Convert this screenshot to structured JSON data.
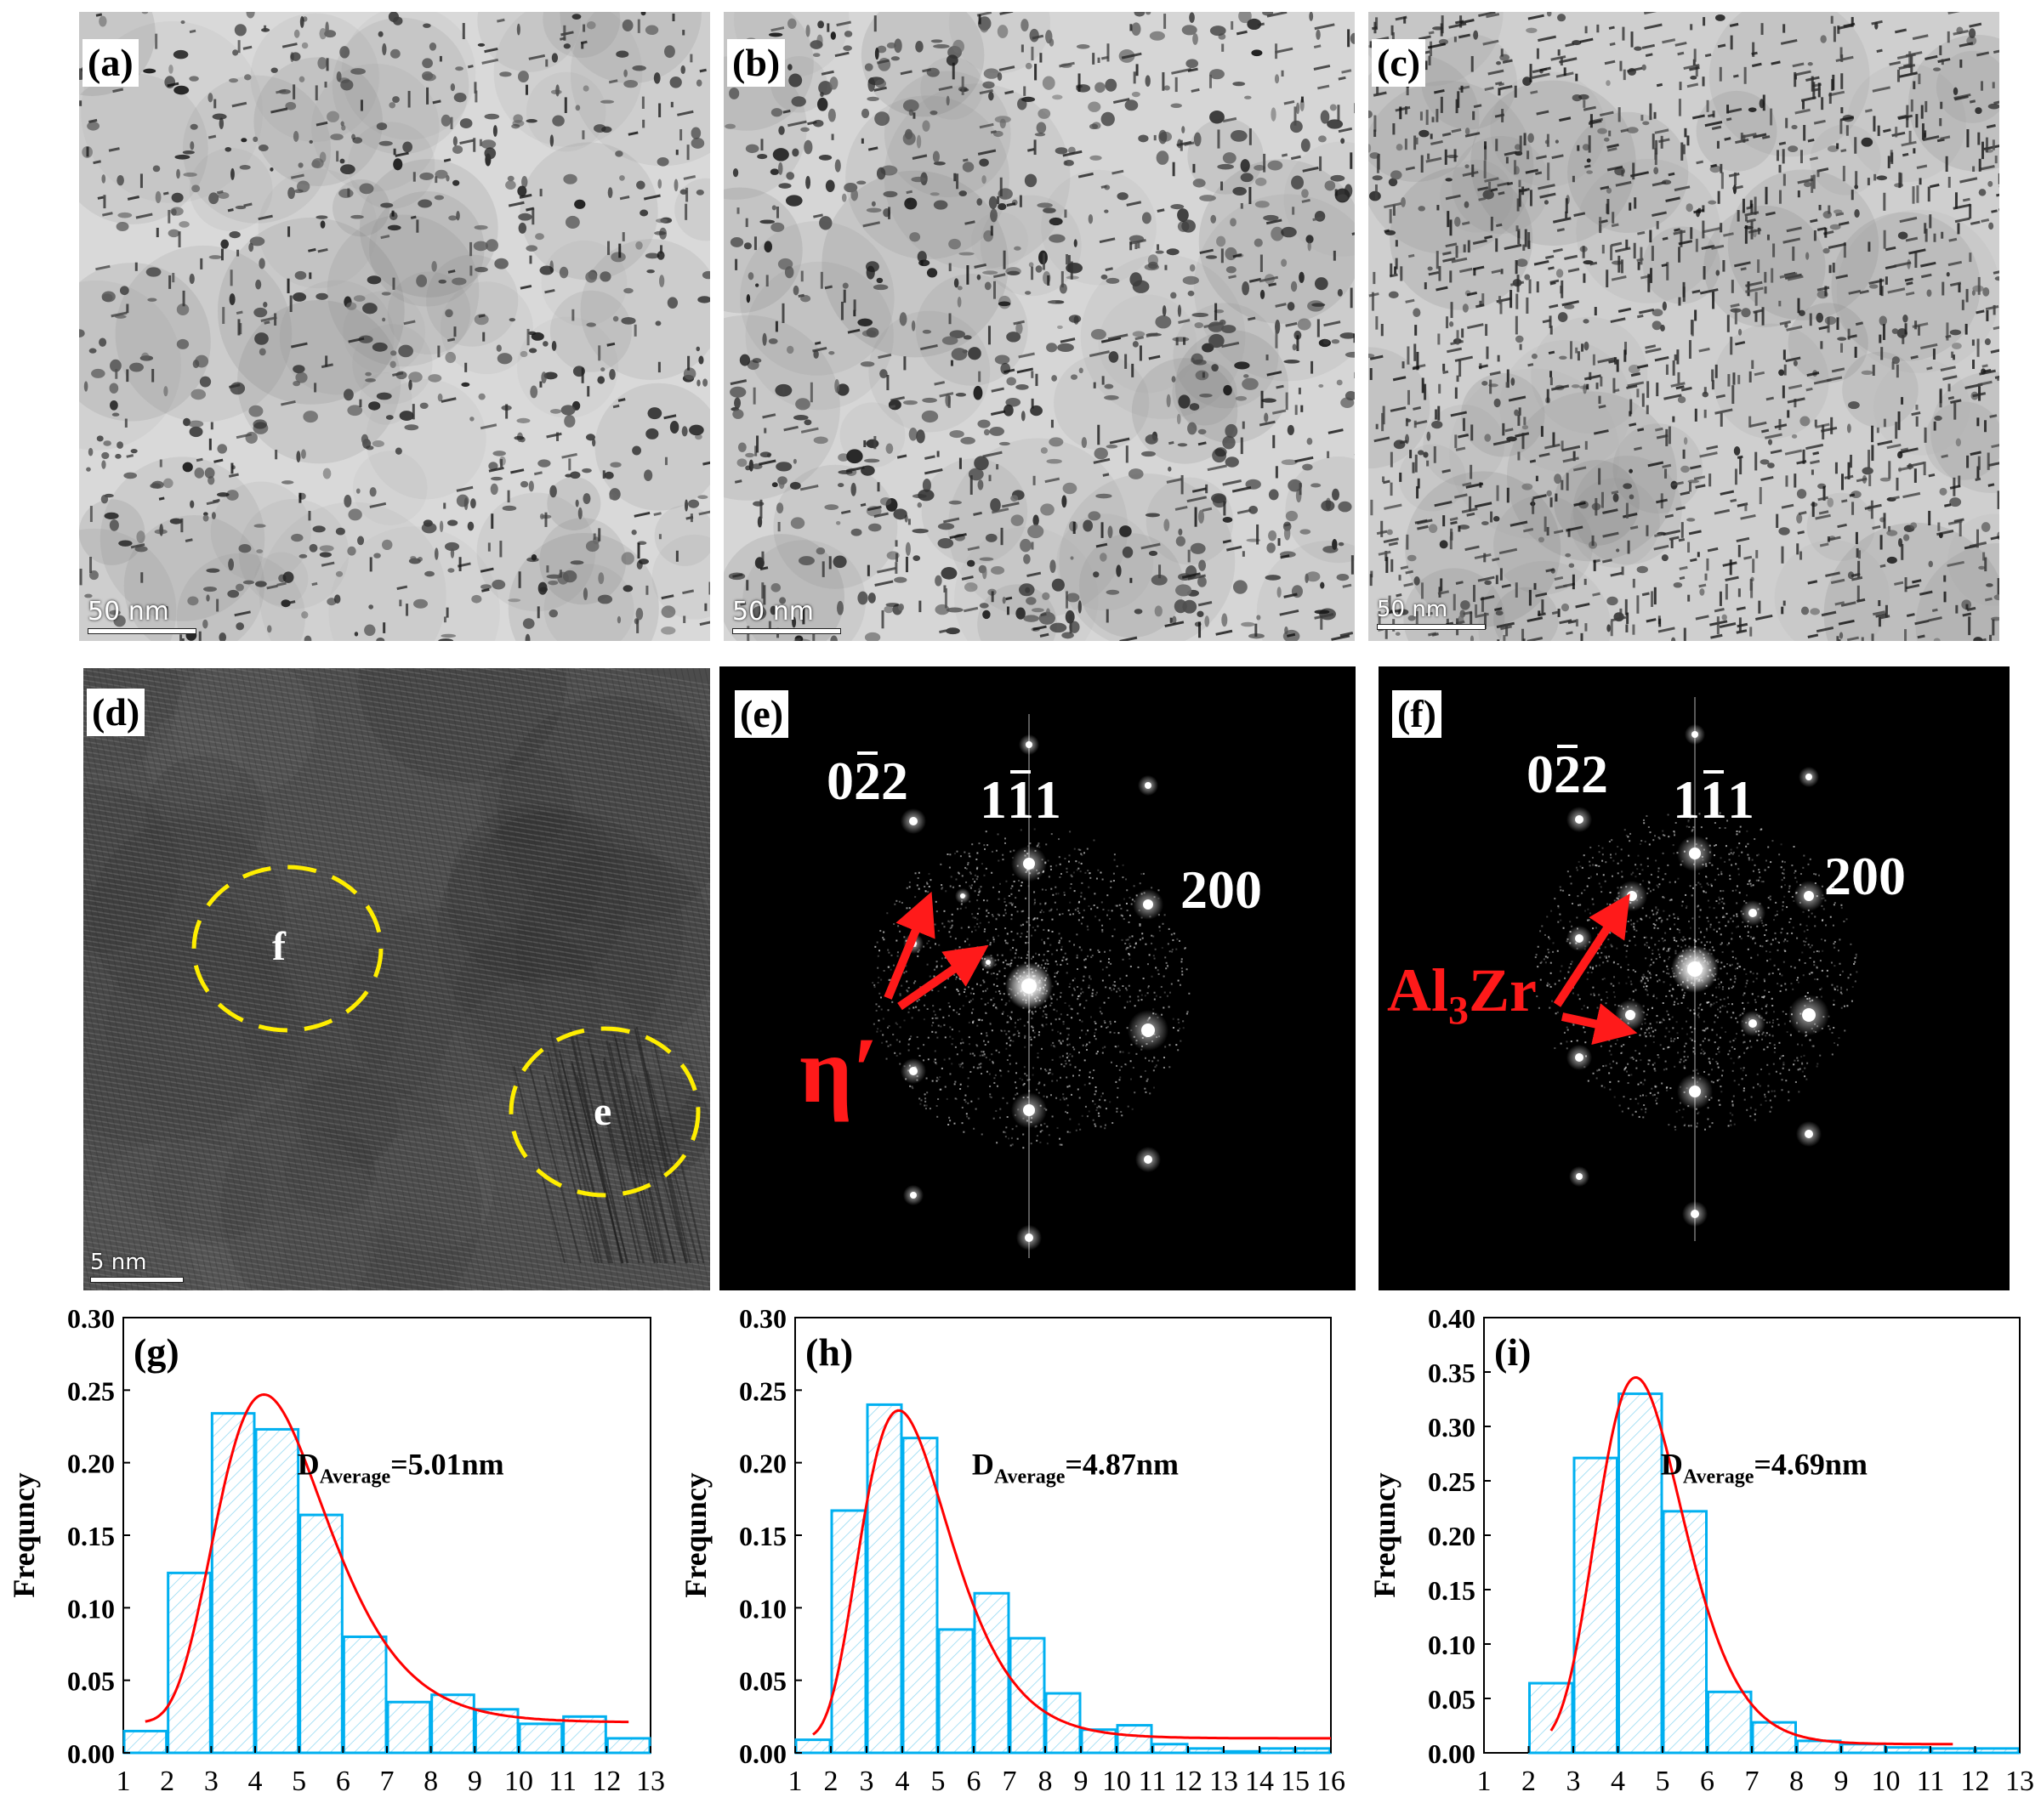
{
  "panels": {
    "a": {
      "label": "(a)",
      "scale": "50 nm"
    },
    "b": {
      "label": "(b)",
      "scale": "50 nm"
    },
    "c": {
      "label": "(c)",
      "scale": "50 nm"
    },
    "d": {
      "label": "(d)",
      "scale": "5 nm",
      "circle_f": "f",
      "circle_e": "e"
    },
    "e": {
      "label": "(e)",
      "idx1": "0",
      "idx1_bar": "2",
      "idx1_end": "2",
      "idx2": "1",
      "idx2_bar": "1",
      "idx2_end": "1",
      "idx3": "200",
      "phase": "η′"
    },
    "f": {
      "label": "(f)",
      "idx1": "0",
      "idx1_bar": "2",
      "idx1_end": "2",
      "idx2": "1",
      "idx2_bar": "1",
      "idx2_end": "1",
      "idx3": "200",
      "phase_a": "Al",
      "phase_sub": "3",
      "phase_b": "Zr"
    }
  },
  "chart_data": [
    {
      "type": "bar",
      "panel_label": "(g)",
      "ylabel": "Frequncy",
      "annotation_main": "D",
      "annotation_sub": "Average",
      "annotation_value": "=5.01nm",
      "xlim": [
        1,
        13
      ],
      "ylim": [
        0,
        0.3
      ],
      "xticks": [
        1,
        2,
        3,
        4,
        5,
        6,
        7,
        8,
        9,
        10,
        11,
        12,
        13
      ],
      "yticks": [
        "0.00",
        "0.05",
        "0.10",
        "0.15",
        "0.20",
        "0.25",
        "0.30"
      ],
      "ytick_values": [
        0,
        0.05,
        0.1,
        0.15,
        0.2,
        0.25,
        0.3
      ],
      "bin_starts": [
        1,
        2,
        3,
        4,
        5,
        6,
        7,
        8,
        9,
        10,
        11,
        12
      ],
      "values": [
        0.015,
        0.124,
        0.234,
        0.223,
        0.164,
        0.08,
        0.035,
        0.04,
        0.03,
        0.02,
        0.025,
        0.01
      ],
      "fit": {
        "type": "lognormal",
        "xmin": 1.5,
        "xmax": 12.5,
        "baseline": 0.021,
        "amplitude": 0.226,
        "peak": 4.2,
        "sigma": 0.3
      },
      "bar_color": "#00b0f0",
      "fit_color": "#ff0000"
    },
    {
      "type": "bar",
      "panel_label": "(h)",
      "ylabel": "Frequncy",
      "annotation_main": "D",
      "annotation_sub": "Average",
      "annotation_value": "=4.87nm",
      "xlim": [
        1,
        16
      ],
      "ylim": [
        0,
        0.3
      ],
      "xticks": [
        1,
        2,
        3,
        4,
        5,
        6,
        7,
        8,
        9,
        10,
        11,
        12,
        13,
        14,
        15,
        16
      ],
      "yticks": [
        "0.00",
        "0.05",
        "0.10",
        "0.15",
        "0.20",
        "0.25",
        "0.30"
      ],
      "ytick_values": [
        0,
        0.05,
        0.1,
        0.15,
        0.2,
        0.25,
        0.3
      ],
      "bin_starts": [
        1,
        2,
        3,
        4,
        5,
        6,
        7,
        8,
        9,
        10,
        11,
        12,
        13,
        14,
        15
      ],
      "values": [
        0.009,
        0.167,
        0.24,
        0.217,
        0.085,
        0.11,
        0.079,
        0.041,
        0.016,
        0.019,
        0.006,
        0.003,
        0.001,
        0.003,
        0.003
      ],
      "fit": {
        "type": "lognormal",
        "xmin": 1.5,
        "xmax": 16,
        "baseline": 0.01,
        "amplitude": 0.226,
        "peak": 3.9,
        "sigma": 0.32
      },
      "bar_color": "#00b0f0",
      "fit_color": "#ff0000"
    },
    {
      "type": "bar",
      "panel_label": "(i)",
      "ylabel": "Frequncy",
      "annotation_main": "D",
      "annotation_sub": "Average",
      "annotation_value": "=4.69nm",
      "xlim": [
        1,
        13
      ],
      "ylim": [
        0,
        0.4
      ],
      "xticks": [
        1,
        2,
        3,
        4,
        5,
        6,
        7,
        8,
        9,
        10,
        11,
        12,
        13
      ],
      "yticks": [
        "0.00",
        "0.05",
        "0.10",
        "0.15",
        "0.20",
        "0.25",
        "0.30",
        "0.35",
        "0.40"
      ],
      "ytick_values": [
        0,
        0.05,
        0.1,
        0.15,
        0.2,
        0.25,
        0.3,
        0.35,
        0.4
      ],
      "bin_starts": [
        2,
        3,
        4,
        5,
        6,
        7,
        8,
        9,
        10,
        11,
        12
      ],
      "values": [
        0.064,
        0.271,
        0.33,
        0.222,
        0.056,
        0.028,
        0.011,
        0.008,
        0.005,
        0.004,
        0.004
      ],
      "fit": {
        "type": "lognormal",
        "xmin": 2.5,
        "xmax": 11.5,
        "baseline": 0.008,
        "amplitude": 0.337,
        "peak": 4.4,
        "sigma": 0.22
      },
      "bar_color": "#00b0f0",
      "fit_color": "#ff0000"
    }
  ]
}
